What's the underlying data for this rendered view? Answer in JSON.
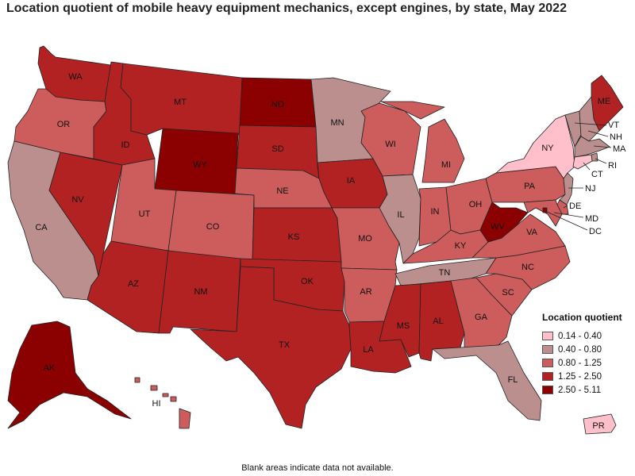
{
  "title": "Location quotient of mobile heavy equipment mechanics, except engines, by state, May 2022",
  "footnote": "Blank areas indicate data not available.",
  "legend": {
    "title": "Location quotient",
    "items": [
      {
        "label": "0.14 - 0.40",
        "color": "#ffc0cb"
      },
      {
        "label": "0.40 - 0.80",
        "color": "#bc8f8f"
      },
      {
        "label": "0.80 - 1.25",
        "color": "#cd5c5c"
      },
      {
        "label": "1.25 - 2.50",
        "color": "#b22222"
      },
      {
        "label": "2.50 - 5.11",
        "color": "#8b0000"
      }
    ]
  },
  "states": {
    "WA": {
      "class": 3
    },
    "OR": {
      "class": 2
    },
    "CA": {
      "class": 1
    },
    "NV": {
      "class": 3
    },
    "ID": {
      "class": 3
    },
    "MT": {
      "class": 3
    },
    "WY": {
      "class": 4
    },
    "UT": {
      "class": 2
    },
    "AZ": {
      "class": 3
    },
    "CO": {
      "class": 2
    },
    "NM": {
      "class": 3
    },
    "ND": {
      "class": 4
    },
    "SD": {
      "class": 3
    },
    "NE": {
      "class": 2
    },
    "KS": {
      "class": 3
    },
    "OK": {
      "class": 3
    },
    "TX": {
      "class": 3
    },
    "MN": {
      "class": 1
    },
    "IA": {
      "class": 3
    },
    "MO": {
      "class": 2
    },
    "AR": {
      "class": 2
    },
    "LA": {
      "class": 3
    },
    "WI": {
      "class": 2
    },
    "IL": {
      "class": 1
    },
    "MI": {
      "class": 2
    },
    "IN": {
      "class": 2
    },
    "OH": {
      "class": 2
    },
    "KY": {
      "class": 2
    },
    "TN": {
      "class": 1
    },
    "MS": {
      "class": 3
    },
    "AL": {
      "class": 3
    },
    "GA": {
      "class": 2
    },
    "FL": {
      "class": 1
    },
    "SC": {
      "class": 2
    },
    "NC": {
      "class": 2
    },
    "VA": {
      "class": 2
    },
    "WV": {
      "class": 4
    },
    "PA": {
      "class": 2
    },
    "NY": {
      "class": 0
    },
    "ME": {
      "class": 3
    },
    "VT": {
      "class": 1
    },
    "NH": {
      "class": 1
    },
    "MA": {
      "class": 1
    },
    "RI": {
      "class": 1
    },
    "CT": {
      "class": 0
    },
    "NJ": {
      "class": 1
    },
    "DE": {
      "class": 2
    },
    "MD": {
      "class": 2
    },
    "DC": {
      "class": 4
    },
    "AK": {
      "class": 4
    },
    "HI": {
      "class": 2
    },
    "PR": {
      "class": 0
    }
  }
}
